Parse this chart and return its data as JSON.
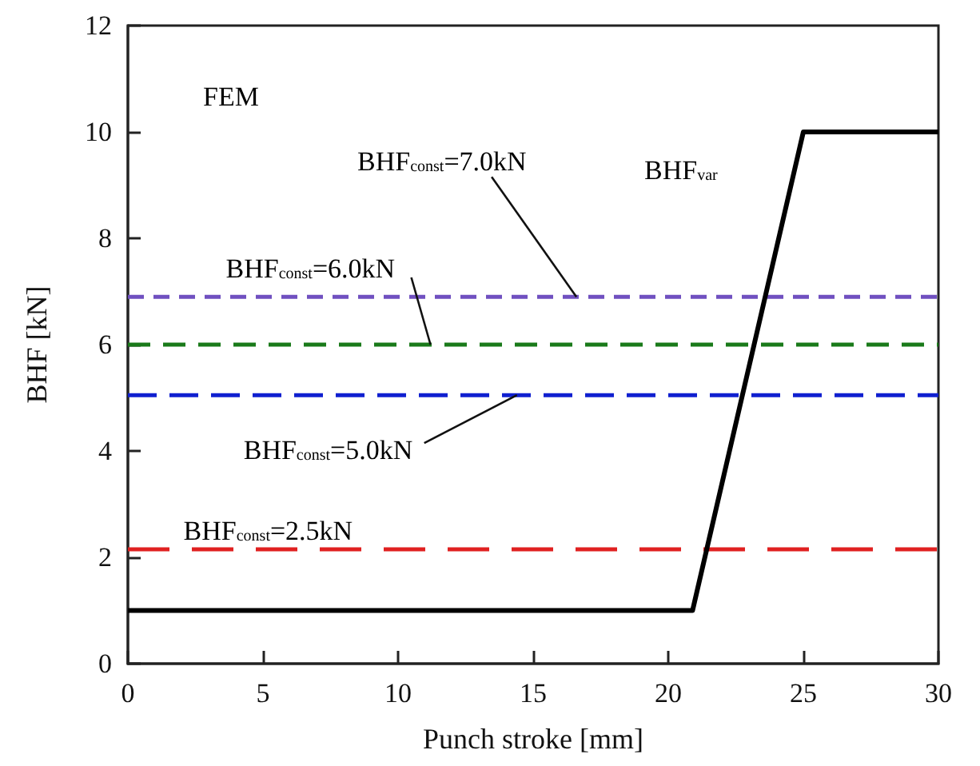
{
  "chart_data": {
    "type": "line",
    "xlabel": "Punch stroke [mm]",
    "ylabel": "BHF [kN]",
    "xlim": [
      0,
      30
    ],
    "xticks": [
      0,
      5,
      10,
      15,
      20,
      25,
      30
    ],
    "ylim": [
      0,
      12
    ],
    "yticks": [
      0,
      2,
      4,
      6,
      8,
      10,
      12
    ],
    "grid": false,
    "marker": "none",
    "series": [
      {
        "color": "#7050c0",
        "line_style": "dashed",
        "x": [
          0,
          30
        ],
        "values": [
          6.9,
          6.9
        ]
      },
      {
        "color": "#1a7a1a",
        "line_style": "dashed",
        "x": [
          0,
          30
        ],
        "values": [
          6.0,
          6.0
        ]
      },
      {
        "color": "#1020d0",
        "line_style": "dashed",
        "x": [
          0,
          30
        ],
        "values": [
          5.05,
          5.05
        ]
      },
      {
        "color": "#e02020",
        "line_style": "dashed",
        "x": [
          0,
          30
        ],
        "values": [
          2.15,
          2.15
        ]
      },
      {
        "color": "#000000",
        "line_style": "solid",
        "x": [
          0,
          20.9,
          25,
          30
        ],
        "values": [
          1.0,
          1.0,
          10.0,
          10.0
        ]
      }
    ],
    "annotations": [
      "FEM",
      {
        "text": "BHF$_{const}$=7.0kN",
        "x": 16.6,
        "y": 6.9
      },
      {
        "text": "BHF$_{const}$=6.0kN",
        "x": 11.2,
        "y": 6.0
      },
      {
        "text": "BHF$_{const}$=5.0kN",
        "x": 14.4,
        "y": 5.05
      },
      {
        "text": "BHF$_{const}$=2.5kN",
        "x": 2.0,
        "y": 2.15
      },
      "BHF$_{var}$"
    ]
  }
}
